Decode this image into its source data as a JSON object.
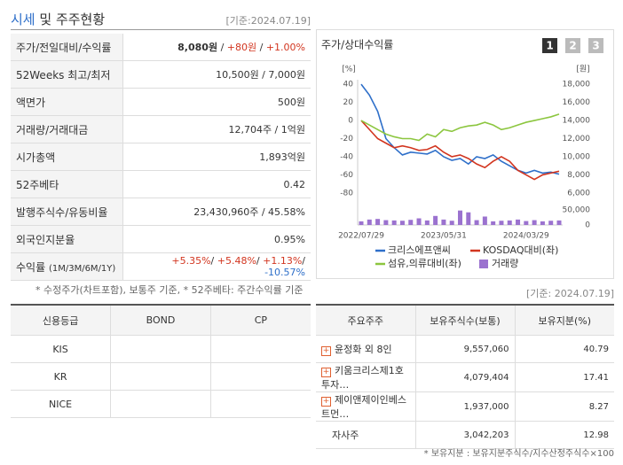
{
  "header": {
    "title_main": "시세",
    "title_rest": "및 주주현황",
    "date": "[기준:2024.07.19]"
  },
  "quote_table": {
    "rows": [
      {
        "label": "주가/전일대비/수익률",
        "value": [
          "8,080원",
          " / ",
          "+80원",
          " / ",
          "+1.00%"
        ]
      },
      {
        "label": "52Weeks 최고/최저",
        "value": [
          "10,500원 / 7,000원"
        ]
      },
      {
        "label": "액면가",
        "value": [
          "500원"
        ]
      },
      {
        "label": "거래량/거래대금",
        "value": [
          "12,704주 / 1억원"
        ]
      },
      {
        "label": "시가총액",
        "value": [
          "1,893억원"
        ]
      },
      {
        "label": "52주베타",
        "value": [
          "0.42"
        ]
      },
      {
        "label": "발행주식수/유동비율",
        "value": [
          "23,430,960주 / 45.58%"
        ]
      },
      {
        "label": "외국인지분율",
        "value": [
          "0.95%"
        ]
      },
      {
        "label": "수익률",
        "label_note": "(1M/3M/6M/1Y)",
        "value": [
          "+5.35%",
          "/ ",
          "+5.48%",
          "/ ",
          "+1.13%",
          "/ ",
          "-10.57%"
        ]
      }
    ]
  },
  "quote_note": "* 수정주가(차트포함), 보통주 기준, * 52주베타: 주간수익률 기준",
  "chart_data": {
    "type": "line",
    "title": "주가/상대수익률",
    "tabs": [
      "1",
      "2",
      "3"
    ],
    "y_unit": "[%]",
    "y2_unit": "[원]",
    "categories": [
      "2022/07/29",
      null,
      null,
      null,
      null,
      null,
      null,
      null,
      null,
      null,
      "2023/05/31",
      null,
      null,
      null,
      null,
      null,
      null,
      null,
      null,
      null,
      "2024/03/29",
      null,
      null,
      null,
      null
    ],
    "ylim": [
      -85,
      45
    ],
    "yticks": [
      40,
      20,
      0,
      -20,
      -40,
      -60,
      -80
    ],
    "y2lim": [
      5500,
      18500
    ],
    "y2ticks": [
      {
        "value": 18000,
        "label": "18,000"
      },
      {
        "value": 16000,
        "label": "16,000"
      },
      {
        "value": 14000,
        "label": "14,000"
      },
      {
        "value": 12000,
        "label": "12,000"
      },
      {
        "value": 10000,
        "label": "10,000"
      },
      {
        "value": 8000,
        "label": "8,000"
      },
      {
        "value": 6000,
        "label": "6,000"
      }
    ],
    "y3lim": [
      0,
      50000
    ],
    "y3ticks": [
      {
        "value": 50000,
        "label": "50,000"
      },
      0
    ],
    "series": [
      {
        "name": "크리스에프앤씨",
        "color": "#2e6fc9",
        "axis": "y2",
        "values": [
          18000,
          16800,
          15000,
          12000,
          11000,
          10200,
          10500,
          10400,
          10300,
          10700,
          10000,
          9600,
          9800,
          9200,
          10000,
          9800,
          10200,
          9500,
          9000,
          8500,
          8200,
          8500,
          8200,
          8300,
          8080
        ]
      },
      {
        "name": "KOSDAQ대비(좌)",
        "color": "#d2351f",
        "values": [
          0,
          -10,
          -20,
          -25,
          -30,
          -28,
          -30,
          -33,
          -32,
          -28,
          -35,
          -40,
          -38,
          -42,
          -48,
          -52,
          -45,
          -40,
          -45,
          -55,
          -60,
          -65,
          -60,
          -58,
          -56
        ]
      },
      {
        "name": "섬유,의류대비(좌)",
        "color": "#8cc63f",
        "values": [
          0,
          -5,
          -10,
          -15,
          -18,
          -20,
          -20,
          -22,
          -15,
          -18,
          -10,
          -12,
          -8,
          -6,
          -5,
          -2,
          -5,
          -10,
          -8,
          -5,
          -2,
          0,
          2,
          4,
          7
        ]
      },
      {
        "name": "거래량",
        "color": "#9b72cf",
        "type": "bar",
        "axis": "y3",
        "values": [
          12000,
          18000,
          20000,
          16000,
          15000,
          14000,
          17000,
          22000,
          15000,
          30000,
          18000,
          14000,
          48000,
          42000,
          16000,
          28000,
          12000,
          14000,
          15000,
          18000,
          13000,
          16000,
          12000,
          14000,
          15000
        ]
      }
    ]
  },
  "chart_date": "[기준: 2024.07.19]",
  "credit_table": {
    "headers": [
      "신용등급",
      "BOND",
      "CP"
    ],
    "rows": [
      "KIS",
      "KR",
      "NICE"
    ]
  },
  "holders_table": {
    "headers": [
      "주요주주",
      "보유주식수(보통)",
      "보유지분(%)"
    ],
    "rows": [
      [
        "윤정화 외 8인",
        "9,557,060",
        "40.79"
      ],
      [
        "키움크리스제1호투자…",
        "4,079,404",
        "17.41"
      ],
      [
        "제이앤제이인베스트먼…",
        "1,937,000",
        "8.27"
      ],
      [
        "자사주",
        "3,042,203",
        "12.98"
      ]
    ]
  },
  "holders_note": "* 보유지분 : 보유지분주식수/지수산정주식수×100"
}
